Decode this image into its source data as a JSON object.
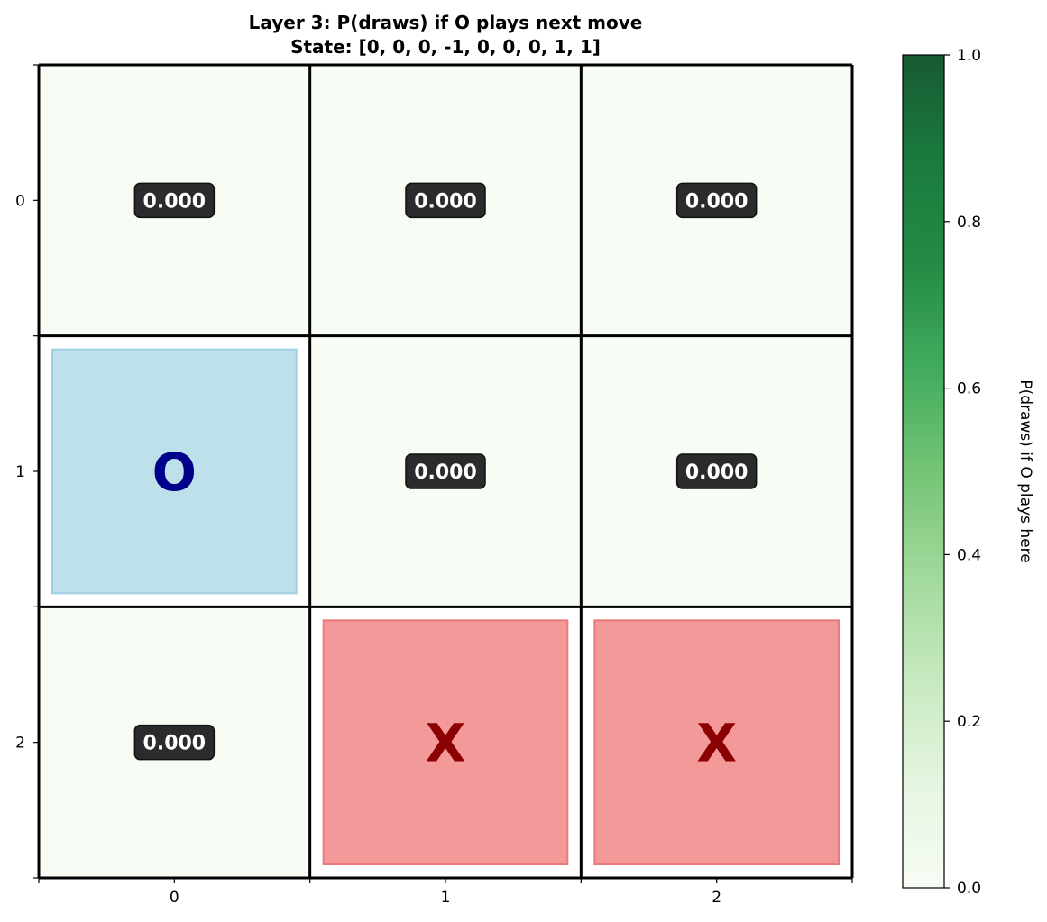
{
  "chart_data": {
    "type": "heatmap",
    "title": "Layer 3: P(draws) if O plays next move",
    "subtitle": "State: [0, 0, 0, -1, 0, 0, 0, 1, 1]",
    "xticks": [
      "0",
      "1",
      "2"
    ],
    "yticks": [
      "0",
      "1",
      "2"
    ],
    "cells": [
      {
        "row": 0,
        "col": 0,
        "value": 0.0,
        "label": "0.000"
      },
      {
        "row": 0,
        "col": 1,
        "value": 0.0,
        "label": "0.000"
      },
      {
        "row": 0,
        "col": 2,
        "value": 0.0,
        "label": "0.000"
      },
      {
        "row": 1,
        "col": 0,
        "piece": "O"
      },
      {
        "row": 1,
        "col": 1,
        "value": 0.0,
        "label": "0.000"
      },
      {
        "row": 1,
        "col": 2,
        "value": 0.0,
        "label": "0.000"
      },
      {
        "row": 2,
        "col": 0,
        "value": 0.0,
        "label": "0.000"
      },
      {
        "row": 2,
        "col": 1,
        "piece": "X"
      },
      {
        "row": 2,
        "col": 2,
        "piece": "X"
      }
    ],
    "colorbar": {
      "label": "P(draws) if O plays here",
      "range": [
        0.0,
        1.0
      ],
      "ticks": [
        "0.0",
        "0.2",
        "0.4",
        "0.6",
        "0.8",
        "1.0"
      ],
      "colormap": "Greens"
    },
    "colors": {
      "empty_cell": "#f7fcf5",
      "o_fill": "#add8e6",
      "o_text": "#00008b",
      "x_fill": "#f08080",
      "x_text": "#8b0000",
      "label_box": "#2b2b2b"
    }
  }
}
